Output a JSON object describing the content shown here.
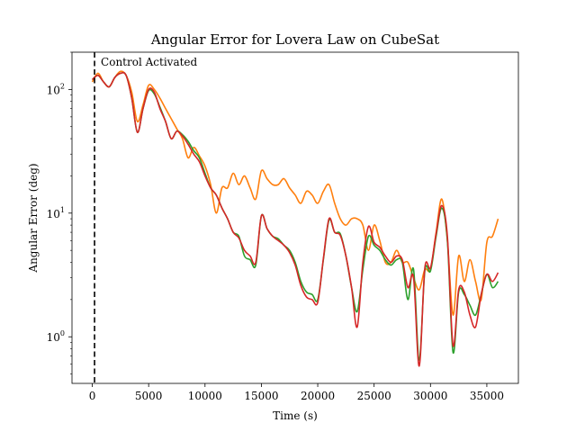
{
  "chart_data": {
    "type": "line",
    "title": "Angular Error for Lovera Law on CubeSat",
    "xlabel": "Time (s)",
    "ylabel": "Angular Error (deg)",
    "xlim": [
      -1800,
      37800
    ],
    "ylim": [
      0.42,
      200
    ],
    "yscale": "log",
    "grid": false,
    "x_ticks": [
      0,
      5000,
      10000,
      15000,
      20000,
      25000,
      30000,
      35000
    ],
    "y_ticks": [
      {
        "value": 1,
        "base": "10",
        "exp": "0"
      },
      {
        "value": 10,
        "base": "10",
        "exp": "1"
      },
      {
        "value": 100,
        "base": "10",
        "exp": "2"
      }
    ],
    "annotation": {
      "text": "Control Activated",
      "x": 200
    },
    "series": [
      {
        "color": "#ff7f0e",
        "x": [
          0,
          500,
          1000,
          1500,
          2000,
          2500,
          3000,
          3500,
          4000,
          4500,
          5000,
          5500,
          6000,
          6500,
          7000,
          7500,
          8000,
          8500,
          9000,
          9500,
          10000,
          10500,
          11000,
          11500,
          12000,
          12500,
          13000,
          13500,
          14000,
          14500,
          15000,
          15500,
          16000,
          16500,
          17000,
          17500,
          18000,
          18500,
          19000,
          19500,
          20000,
          20500,
          21000,
          21500,
          22000,
          22500,
          23000,
          23500,
          24000,
          24500,
          25000,
          25500,
          26000,
          26500,
          27000,
          27500,
          28000,
          28500,
          29000,
          29500,
          30000,
          30500,
          31000,
          31500,
          32000,
          32500,
          33000,
          33500,
          34000,
          34500,
          35000,
          35500,
          36000
        ],
        "y": [
          115,
          135,
          115,
          105,
          125,
          140,
          130,
          95,
          55,
          75,
          108,
          100,
          85,
          70,
          58,
          48,
          40,
          28,
          34,
          29,
          24,
          17,
          10,
          16,
          16,
          21,
          17,
          20,
          16,
          13,
          22,
          19,
          17,
          17,
          19,
          16,
          14,
          12,
          15,
          14,
          12,
          15,
          17,
          12,
          9,
          8,
          9,
          9,
          8,
          5,
          8,
          6,
          4,
          4,
          5,
          4,
          4,
          3,
          2.4,
          3.5,
          3.5,
          7,
          13,
          6,
          1.5,
          4.5,
          2.8,
          4.2,
          2.8,
          2,
          5.8,
          6.5,
          9
        ]
      },
      {
        "color": "#2ca02c",
        "x": [
          0,
          500,
          1000,
          1500,
          2000,
          2500,
          3000,
          3500,
          4000,
          4500,
          5000,
          5500,
          6000,
          6500,
          7000,
          7500,
          8000,
          8500,
          9000,
          9500,
          10000,
          10500,
          11000,
          11500,
          12000,
          12500,
          13000,
          13500,
          14000,
          14500,
          15000,
          15500,
          16000,
          16500,
          17000,
          17500,
          18000,
          18500,
          19000,
          19500,
          20000,
          20500,
          21000,
          21500,
          22000,
          22500,
          23000,
          23500,
          24000,
          24500,
          25000,
          25500,
          26000,
          26500,
          27000,
          27500,
          28000,
          28500,
          29000,
          29500,
          30000,
          30500,
          31000,
          31500,
          32000,
          32500,
          33000,
          33500,
          34000,
          34500,
          35000,
          35500,
          36000
        ],
        "y": [
          120,
          130,
          115,
          105,
          125,
          135,
          130,
          85,
          45,
          70,
          98,
          92,
          72,
          55,
          40,
          46,
          43,
          38,
          32,
          28,
          21,
          16,
          14,
          11,
          9,
          7,
          6.5,
          4.5,
          4.2,
          3.8,
          9.5,
          7.5,
          6.5,
          6.2,
          5.5,
          5,
          4,
          2.8,
          2.3,
          2.2,
          2,
          4.2,
          8.8,
          7,
          6.8,
          4.5,
          2.5,
          1.6,
          3.5,
          6.5,
          5.5,
          5,
          4.2,
          3.8,
          4.2,
          4,
          2,
          3.5,
          0.65,
          3.4,
          3.4,
          6.5,
          11,
          6,
          0.75,
          2.3,
          2.2,
          1.8,
          1.5,
          2.2,
          3.2,
          2.5,
          2.8
        ]
      },
      {
        "color": "#d62728",
        "x": [
          0,
          500,
          1000,
          1500,
          2000,
          2500,
          3000,
          3500,
          4000,
          4500,
          5000,
          5500,
          6000,
          6500,
          7000,
          7500,
          8000,
          8500,
          9000,
          9500,
          10000,
          10500,
          11000,
          11500,
          12000,
          12500,
          13000,
          13500,
          14000,
          14500,
          15000,
          15500,
          16000,
          16500,
          17000,
          17500,
          18000,
          18500,
          19000,
          19500,
          20000,
          20500,
          21000,
          21500,
          22000,
          22500,
          23000,
          23500,
          24000,
          24500,
          25000,
          25500,
          26000,
          26500,
          27000,
          27500,
          28000,
          28500,
          29000,
          29500,
          30000,
          30500,
          31000,
          31500,
          32000,
          32500,
          33000,
          33500,
          34000,
          34500,
          35000,
          35500,
          36000
        ],
        "y": [
          120,
          130,
          115,
          105,
          125,
          135,
          130,
          85,
          45,
          70,
          100,
          95,
          70,
          55,
          40,
          46,
          42,
          36,
          30,
          26,
          20,
          16,
          14,
          11,
          9,
          7,
          6.3,
          5,
          4.5,
          4,
          9.5,
          7.5,
          6.5,
          6,
          5.5,
          4.8,
          3.8,
          2.6,
          2.1,
          2,
          1.9,
          4.3,
          9,
          7,
          6.6,
          4.5,
          2.5,
          1.2,
          4,
          7.8,
          5.8,
          5.3,
          4.5,
          4,
          4.5,
          4.2,
          2.5,
          3,
          0.58,
          3.6,
          3.6,
          6.8,
          11.5,
          6.5,
          0.85,
          2.4,
          2.3,
          1.5,
          1.2,
          2.2,
          3.2,
          2.8,
          3.3
        ]
      }
    ]
  }
}
